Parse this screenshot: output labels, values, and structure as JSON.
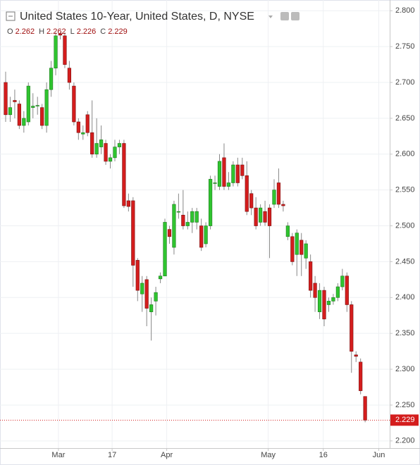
{
  "chart_data": {
    "type": "candlestick",
    "title": "United States 10-Year, United States, D, NYSE",
    "ohlc_legend": [
      {
        "label": "O",
        "value": 2.262
      },
      {
        "label": "H",
        "value": 2.262
      },
      {
        "label": "L",
        "value": 2.226
      },
      {
        "label": "C",
        "value": 2.229
      }
    ],
    "last_price": {
      "value": 2.229,
      "label": "2.229"
    },
    "up_color": "#2fc42f",
    "down_color": "#d41d1d",
    "grid": true,
    "ylim": [
      2.19,
      2.815
    ],
    "yticks": [
      {
        "value": 2.2,
        "label": "2.200"
      },
      {
        "value": 2.25,
        "label": "2.250"
      },
      {
        "value": 2.3,
        "label": "2.300"
      },
      {
        "value": 2.35,
        "label": "2.350"
      },
      {
        "value": 2.4,
        "label": "2.400"
      },
      {
        "value": 2.45,
        "label": "2.450"
      },
      {
        "value": 2.5,
        "label": "2.500"
      },
      {
        "value": 2.55,
        "label": "2.550"
      },
      {
        "value": 2.6,
        "label": "2.600"
      },
      {
        "value": 2.65,
        "label": "2.650"
      },
      {
        "value": 2.7,
        "label": "2.700"
      },
      {
        "value": 2.75,
        "label": "2.750"
      },
      {
        "value": 2.8,
        "label": "2.800"
      }
    ],
    "xlim": [
      -1.24,
      84.4
    ],
    "xticks": [
      {
        "value": 11.6,
        "label": "Mar"
      },
      {
        "value": 23.4,
        "label": "17"
      },
      {
        "value": 35.4,
        "label": "Apr"
      },
      {
        "value": 57.7,
        "label": "May"
      },
      {
        "value": 69.8,
        "label": "16"
      },
      {
        "value": 82,
        "label": "Jun"
      }
    ],
    "open": [
      2.7,
      2.655,
      2.675,
      2.67,
      2.64,
      2.645,
      2.665,
      2.667,
      2.665,
      2.64,
      2.69,
      2.72,
      2.768,
      2.765,
      2.72,
      2.695,
      2.645,
      2.628,
      2.655,
      2.63,
      2.6,
      2.61,
      2.615,
      2.59,
      2.595,
      2.61,
      2.615,
      2.535,
      2.535,
      2.452,
      2.405,
      2.425,
      2.38,
      2.395,
      2.426,
      2.43,
      2.495,
      2.47,
      2.52,
      2.515,
      2.5,
      2.505,
      2.505,
      2.5,
      2.475,
      2.5,
      2.56,
      2.555,
      2.595,
      2.555,
      2.56,
      2.585,
      2.585,
      2.57,
      2.545,
      2.525,
      2.505,
      2.52,
      2.525,
      2.53,
      2.56,
      2.53,
      2.485,
      2.485,
      2.46,
      2.48,
      2.455,
      2.45,
      2.42,
      2.38,
      2.41,
      2.39,
      2.395,
      2.4,
      2.415,
      2.43,
      2.39,
      2.32,
      2.31,
      2.262
    ],
    "high": [
      2.715,
      2.68,
      2.69,
      2.675,
      2.66,
      2.7,
      2.685,
      2.68,
      2.67,
      2.7,
      2.73,
      2.77,
      2.77,
      2.77,
      2.73,
      2.7,
      2.65,
      2.64,
      2.66,
      2.675,
      2.65,
      2.64,
      2.62,
      2.6,
      2.62,
      2.62,
      2.62,
      2.545,
      2.54,
      2.455,
      2.43,
      2.43,
      2.4,
      2.415,
      2.435,
      2.51,
      2.5,
      2.535,
      2.545,
      2.55,
      2.52,
      2.525,
      2.525,
      2.51,
      2.505,
      2.57,
      2.57,
      2.6,
      2.615,
      2.575,
      2.59,
      2.595,
      2.595,
      2.59,
      2.55,
      2.54,
      2.53,
      2.535,
      2.53,
      2.565,
      2.58,
      2.535,
      2.505,
      2.49,
      2.495,
      2.49,
      2.48,
      2.46,
      2.43,
      2.42,
      2.415,
      2.4,
      2.405,
      2.42,
      2.44,
      2.435,
      2.395,
      2.325,
      2.315,
      2.262
    ],
    "low": [
      2.645,
      2.645,
      2.65,
      2.635,
      2.63,
      2.64,
      2.65,
      2.655,
      2.635,
      2.63,
      2.68,
      2.71,
      2.76,
      2.72,
      2.69,
      2.64,
      2.62,
      2.62,
      2.625,
      2.595,
      2.595,
      2.6,
      2.585,
      2.58,
      2.59,
      2.6,
      2.525,
      2.52,
      2.415,
      2.395,
      2.38,
      2.36,
      2.34,
      2.375,
      2.42,
      2.43,
      2.475,
      2.46,
      2.51,
      2.495,
      2.495,
      2.49,
      2.495,
      2.465,
      2.47,
      2.495,
      2.55,
      2.55,
      2.55,
      2.55,
      2.555,
      2.555,
      2.565,
      2.515,
      2.515,
      2.495,
      2.5,
      2.5,
      2.455,
      2.525,
      2.525,
      2.52,
      2.48,
      2.445,
      2.43,
      2.43,
      2.44,
      2.4,
      2.38,
      2.37,
      2.36,
      2.38,
      2.39,
      2.395,
      2.41,
      2.38,
      2.295,
      2.31,
      2.265,
      2.226
    ],
    "close": [
      2.655,
      2.665,
      2.673,
      2.64,
      2.65,
      2.695,
      2.667,
      2.668,
      2.64,
      2.69,
      2.72,
      2.765,
      2.766,
      2.725,
      2.7,
      2.645,
      2.63,
      2.63,
      2.63,
      2.6,
      2.615,
      2.62,
      2.59,
      2.595,
      2.61,
      2.615,
      2.528,
      2.527,
      2.445,
      2.41,
      2.42,
      2.385,
      2.39,
      2.407,
      2.43,
      2.505,
      2.485,
      2.53,
      2.52,
      2.5,
      2.505,
      2.52,
      2.52,
      2.47,
      2.5,
      2.565,
      2.56,
      2.59,
      2.555,
      2.56,
      2.585,
      2.56,
      2.57,
      2.52,
      2.525,
      2.5,
      2.525,
      2.505,
      2.5,
      2.55,
      2.53,
      2.528,
      2.5,
      2.45,
      2.49,
      2.46,
      2.475,
      2.41,
      2.4,
      2.41,
      2.37,
      2.395,
      2.4,
      2.415,
      2.43,
      2.39,
      2.325,
      2.318,
      2.27,
      2.229
    ]
  }
}
